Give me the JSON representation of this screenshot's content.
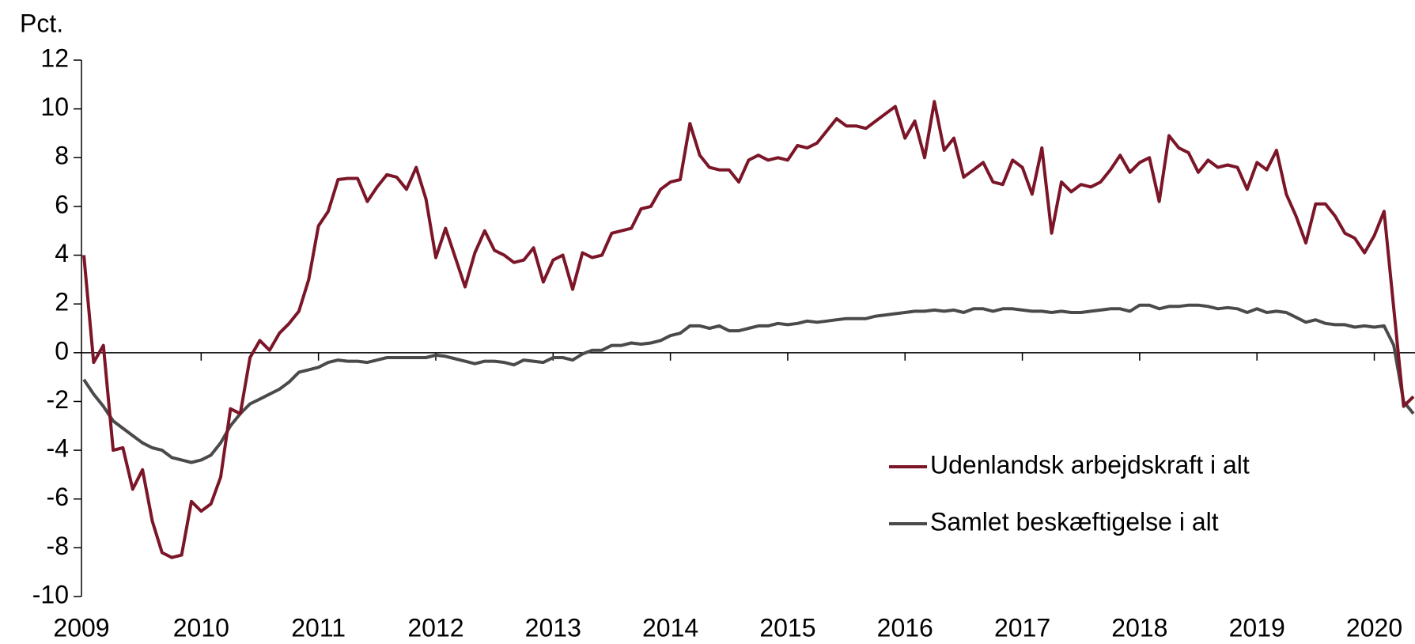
{
  "chart_data": {
    "type": "line",
    "y_label": "Pct.",
    "categories": [
      "2009",
      null,
      null,
      null,
      null,
      null,
      null,
      null,
      null,
      null,
      null,
      null,
      "2010",
      null,
      null,
      null,
      null,
      null,
      null,
      null,
      null,
      null,
      null,
      null,
      "2011",
      null,
      null,
      null,
      null,
      null,
      null,
      null,
      null,
      null,
      null,
      null,
      "2012",
      null,
      null,
      null,
      null,
      null,
      null,
      null,
      null,
      null,
      null,
      null,
      "2013",
      null,
      null,
      null,
      null,
      null,
      null,
      null,
      null,
      null,
      null,
      null,
      "2014",
      null,
      null,
      null,
      null,
      null,
      null,
      null,
      null,
      null,
      null,
      null,
      "2015",
      null,
      null,
      null,
      null,
      null,
      null,
      null,
      null,
      null,
      null,
      null,
      "2016",
      null,
      null,
      null,
      null,
      null,
      null,
      null,
      null,
      null,
      null,
      null,
      "2017",
      null,
      null,
      null,
      null,
      null,
      null,
      null,
      null,
      null,
      null,
      null,
      "2018",
      null,
      null,
      null,
      null,
      null,
      null,
      null,
      null,
      null,
      null,
      null,
      "2019",
      null,
      null,
      null,
      null,
      null,
      null,
      null,
      null,
      null,
      null,
      null,
      "2020",
      null,
      null,
      null,
      null
    ],
    "series": [
      {
        "name": "Udenlandsk arbejdskraft i alt",
        "color": "#7b1528",
        "values": [
          4.0,
          -0.4,
          0.3,
          -4.0,
          -3.9,
          -5.6,
          -4.8,
          -6.9,
          -8.2,
          -8.4,
          -8.3,
          -6.1,
          -6.5,
          -6.2,
          -5.1,
          -2.3,
          -2.5,
          -0.2,
          0.5,
          0.1,
          0.8,
          1.2,
          1.7,
          3.0,
          5.2,
          5.8,
          7.1,
          7.15,
          7.15,
          6.2,
          6.8,
          7.3,
          7.2,
          6.7,
          7.6,
          6.3,
          3.9,
          5.1,
          3.9,
          2.7,
          4.1,
          5.0,
          4.2,
          4.0,
          3.7,
          3.8,
          4.3,
          2.9,
          3.8,
          4.0,
          2.6,
          4.1,
          3.9,
          4.0,
          4.9,
          5.0,
          5.1,
          5.9,
          6.0,
          6.7,
          7.0,
          7.1,
          9.4,
          8.1,
          7.6,
          7.5,
          7.5,
          7.0,
          7.9,
          8.1,
          7.9,
          8.0,
          7.9,
          8.5,
          8.4,
          8.6,
          9.1,
          9.6,
          9.3,
          9.3,
          9.2,
          9.5,
          9.8,
          10.1,
          8.8,
          9.5,
          8.0,
          10.3,
          8.3,
          8.8,
          7.2,
          7.5,
          7.8,
          7.0,
          6.9,
          7.9,
          7.6,
          6.5,
          8.4,
          4.9,
          7.0,
          6.6,
          6.9,
          6.8,
          7.0,
          7.5,
          8.1,
          7.4,
          7.8,
          8.0,
          6.2,
          8.9,
          8.4,
          8.2,
          7.4,
          7.9,
          7.6,
          7.7,
          7.6,
          6.7,
          7.8,
          7.5,
          8.3,
          6.5,
          5.6,
          4.5,
          6.1,
          6.1,
          5.6,
          4.9,
          4.7,
          4.1,
          4.8,
          5.8,
          1.8,
          -2.2,
          -1.8
        ]
      },
      {
        "name": "Samlet beskæftigelse i alt",
        "color": "#4a4a4a",
        "values": [
          -1.1,
          -1.7,
          -2.2,
          -2.8,
          -3.1,
          -3.4,
          -3.7,
          -3.9,
          -4.0,
          -4.3,
          -4.4,
          -4.5,
          -4.4,
          -4.2,
          -3.7,
          -3.0,
          -2.5,
          -2.1,
          -1.9,
          -1.7,
          -1.5,
          -1.2,
          -0.8,
          -0.7,
          -0.6,
          -0.4,
          -0.3,
          -0.35,
          -0.35,
          -0.4,
          -0.3,
          -0.2,
          -0.2,
          -0.2,
          -0.2,
          -0.2,
          -0.1,
          -0.15,
          -0.25,
          -0.35,
          -0.45,
          -0.35,
          -0.35,
          -0.4,
          -0.5,
          -0.3,
          -0.35,
          -0.4,
          -0.2,
          -0.2,
          -0.3,
          -0.05,
          0.1,
          0.1,
          0.3,
          0.3,
          0.4,
          0.35,
          0.4,
          0.5,
          0.7,
          0.8,
          1.1,
          1.1,
          1.0,
          1.1,
          0.9,
          0.9,
          1.0,
          1.1,
          1.1,
          1.2,
          1.15,
          1.2,
          1.3,
          1.25,
          1.3,
          1.35,
          1.4,
          1.4,
          1.4,
          1.5,
          1.55,
          1.6,
          1.65,
          1.7,
          1.7,
          1.75,
          1.7,
          1.75,
          1.65,
          1.8,
          1.8,
          1.7,
          1.8,
          1.8,
          1.75,
          1.7,
          1.7,
          1.65,
          1.7,
          1.65,
          1.65,
          1.7,
          1.75,
          1.8,
          1.8,
          1.7,
          1.95,
          1.95,
          1.8,
          1.9,
          1.9,
          1.95,
          1.95,
          1.9,
          1.8,
          1.85,
          1.8,
          1.65,
          1.8,
          1.65,
          1.7,
          1.65,
          1.45,
          1.25,
          1.35,
          1.2,
          1.15,
          1.15,
          1.05,
          1.1,
          1.05,
          1.1,
          0.3,
          -2.0,
          -2.5
        ]
      }
    ],
    "ylim": [
      -10,
      12
    ],
    "yticks": [
      12,
      10,
      8,
      6,
      4,
      2,
      0,
      -2,
      -4,
      -6,
      -8,
      -10
    ],
    "legend": "lower right"
  }
}
